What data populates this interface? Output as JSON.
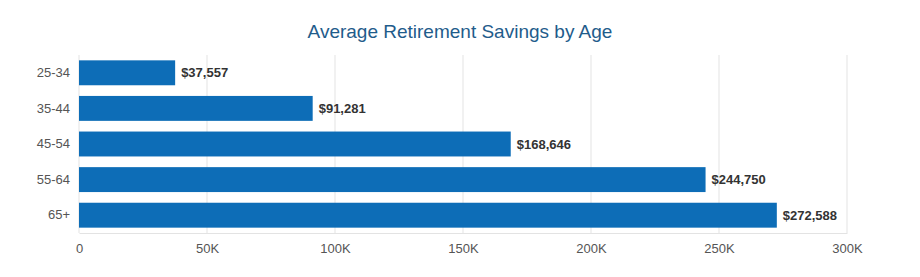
{
  "chart_data": {
    "type": "bar",
    "title": "Average Retirement Savings by Age",
    "orientation": "horizontal",
    "categories": [
      "25-34",
      "35-44",
      "45-54",
      "55-64",
      "65+"
    ],
    "values": [
      37557,
      91281,
      168646,
      244750,
      272588
    ],
    "value_labels": [
      "$37,557",
      "$91,281",
      "$168,646",
      "$244,750",
      "$272,588"
    ],
    "data_labels": true,
    "color": "#0d6db7",
    "xlim": [
      0,
      300000
    ],
    "xticks": [
      0,
      {
        "value": 50000,
        "label": "50K"
      },
      {
        "value": 100000,
        "label": "100K"
      },
      {
        "value": 150000,
        "label": "150K"
      },
      {
        "value": 200000,
        "label": "200K"
      },
      {
        "value": 250000,
        "label": "250K"
      },
      {
        "value": 300000,
        "label": "300K"
      }
    ],
    "grid": true
  }
}
